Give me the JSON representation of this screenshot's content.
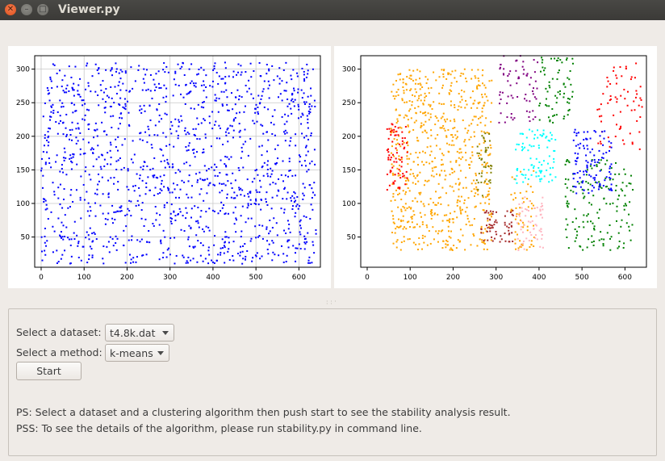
{
  "window": {
    "title": "Viewer.py"
  },
  "titlebar_icons": [
    "close-icon",
    "minimize-icon",
    "maximize-icon"
  ],
  "controls": {
    "dataset_label": "Select a dataset:",
    "dataset_value": "t4.8k.dat",
    "method_label": "Select a method:",
    "method_value": "k-means",
    "start_label": "Start"
  },
  "notes": {
    "ps": "PS: Select a dataset and a clustering algorithm then push start to see the stability analysis result.",
    "pss": "PSS: To see the details of the algorithm, please run stability.py in command line."
  },
  "chart_data": [
    {
      "type": "scatter",
      "title": "",
      "xlim": [
        -15,
        650
      ],
      "ylim": [
        5,
        320
      ],
      "xticks": [
        0,
        100,
        200,
        300,
        400,
        500,
        600
      ],
      "yticks": [
        50,
        100,
        150,
        200,
        250,
        300
      ],
      "grid": true,
      "series": [
        {
          "color": "#0000ff",
          "regions": [
            [
              0,
              640,
              10,
              310,
              1400
            ]
          ]
        }
      ]
    },
    {
      "type": "scatter",
      "title": "",
      "xlim": [
        -15,
        650
      ],
      "ylim": [
        5,
        320
      ],
      "xticks": [
        0,
        100,
        200,
        300,
        400,
        500,
        600
      ],
      "yticks": [
        50,
        100,
        150,
        200,
        250,
        300
      ],
      "grid": false,
      "series": [
        {
          "color": "#ffa500",
          "regions": [
            [
              55,
              290,
              30,
              300,
              700
            ],
            [
              335,
              390,
              30,
              150,
              60
            ]
          ]
        },
        {
          "color": "#ff0000",
          "regions": [
            [
              45,
              95,
              120,
              220,
              70
            ],
            [
              535,
              640,
              180,
              310,
              70
            ]
          ]
        },
        {
          "color": "#800080",
          "regions": [
            [
              305,
              400,
              220,
              320,
              70
            ]
          ]
        },
        {
          "color": "#008000",
          "regions": [
            [
              400,
              480,
              220,
              320,
              70
            ],
            [
              460,
              620,
              30,
              165,
              150
            ]
          ]
        },
        {
          "color": "#00ffff",
          "regions": [
            [
              345,
              440,
              130,
              210,
              90
            ]
          ]
        },
        {
          "color": "#0000ff",
          "regions": [
            [
              480,
              570,
              115,
              210,
              110
            ]
          ]
        },
        {
          "color": "#808000",
          "regions": [
            [
              255,
              290,
              110,
              205,
              40
            ]
          ]
        },
        {
          "color": "#a52a2a",
          "regions": [
            [
              265,
              345,
              40,
              90,
              60
            ]
          ]
        },
        {
          "color": "#ffb6c1",
          "regions": [
            [
              345,
              410,
              30,
              110,
              60
            ]
          ]
        }
      ]
    }
  ]
}
